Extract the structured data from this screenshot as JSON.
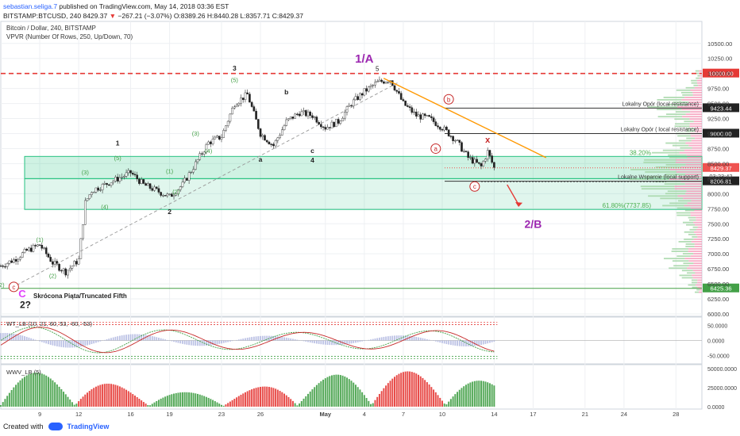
{
  "header": {
    "author": "sebastian.seliga.7",
    "published": "published on TradingView.com, May 14, 2018 03:36 EST",
    "symbol": "BITSTAMP:BTCUSD, 240",
    "last": "8429.37",
    "change": "−267.21 (−3.07%)",
    "open": "O:8389.26",
    "high": "H:8440.28",
    "low": "L:8357.71",
    "close": "C:8429.37"
  },
  "legend": {
    "title": "Bitcoin / Dollar, 240, BITSTAMP",
    "vpvr": "VPVR (Number Of Rows, 250, Up/Down, 70)",
    "wt": "WT_LB (10, 21, 60, 53, -60, -53)",
    "wvv": "WWV_LB (5)"
  },
  "footer": {
    "created": "Created with",
    "brand": "TradingView"
  },
  "colors": {
    "up": "#26a69a",
    "down": "#ef5350",
    "zone": "#26c281",
    "red_line": "#e53935",
    "trend": "#ff9800",
    "wave_purple": "#9c27b0",
    "vpvr_up": "#a5d6a7",
    "vpvr_down": "#f48fb1"
  },
  "chart_data": [
    {
      "type": "candlestick",
      "title": "Bitcoin / Dollar, 240, BITSTAMP",
      "y_axis": {
        "ylim": [
          6000,
          10800
        ],
        "ticks": [
          6000,
          6250,
          6500,
          6750,
          7000,
          7250,
          7500,
          7750,
          8000,
          8250,
          8500,
          8750,
          9000,
          9250,
          9500,
          9750,
          10000,
          10250,
          10500
        ],
        "tick_labels": [
          "6000.00",
          "6250.00",
          "6500.00",
          "6750.00",
          "7000.00",
          "7250.00",
          "7500.00",
          "7750.00",
          "8000.00",
          "8250.00",
          "8500.00",
          "8750.00",
          "9000.00",
          "9250.00",
          "9500.00",
          "9750.00",
          "10000.00",
          "10250.00",
          "10500.00"
        ]
      },
      "x_axis": {
        "date_range": [
          "2018-04-06",
          "2018-05-30"
        ],
        "tick_dates": [
          "2018-04-09",
          "2018-04-12",
          "2018-04-16",
          "2018-04-19",
          "2018-04-23",
          "2018-04-26",
          "2018-05-01",
          "2018-05-04",
          "2018-05-07",
          "2018-05-10",
          "2018-05-14",
          "2018-05-17",
          "2018-05-21",
          "2018-05-24",
          "2018-05-28"
        ],
        "tick_labels": [
          "9",
          "12",
          "16",
          "19",
          "23",
          "26",
          "May",
          "4",
          "7",
          "10",
          "14",
          "17",
          "21",
          "24",
          "28"
        ]
      },
      "price_path": [
        [
          "2018-04-06",
          6800
        ],
        [
          "2018-04-07",
          6900
        ],
        [
          "2018-04-08",
          7050
        ],
        [
          "2018-04-09",
          7150
        ],
        [
          "2018-04-10",
          6850
        ],
        [
          "2018-04-11",
          6700
        ],
        [
          "2018-04-12",
          6900
        ],
        [
          "2018-04-12T12",
          7850
        ],
        [
          "2018-04-13",
          8050
        ],
        [
          "2018-04-14",
          8150
        ],
        [
          "2018-04-15",
          8250
        ],
        [
          "2018-04-16",
          8350
        ],
        [
          "2018-04-17",
          8150
        ],
        [
          "2018-04-18",
          8050
        ],
        [
          "2018-04-19",
          7950
        ],
        [
          "2018-04-20",
          8150
        ],
        [
          "2018-04-21",
          8500
        ],
        [
          "2018-04-22",
          8850
        ],
        [
          "2018-04-23",
          8950
        ],
        [
          "2018-04-24",
          9500
        ],
        [
          "2018-04-25",
          9650
        ],
        [
          "2018-04-26",
          9000
        ],
        [
          "2018-04-27",
          8800
        ],
        [
          "2018-04-28",
          9200
        ],
        [
          "2018-04-29",
          9350
        ],
        [
          "2018-04-30",
          9300
        ],
        [
          "2018-05-01",
          9100
        ],
        [
          "2018-05-02",
          9200
        ],
        [
          "2018-05-03",
          9500
        ],
        [
          "2018-05-04",
          9700
        ],
        [
          "2018-05-05",
          9850
        ],
        [
          "2018-05-06",
          9900
        ],
        [
          "2018-05-07",
          9500
        ],
        [
          "2018-05-08",
          9300
        ],
        [
          "2018-05-09",
          9250
        ],
        [
          "2018-05-10",
          9100
        ],
        [
          "2018-05-11",
          8900
        ],
        [
          "2018-05-12",
          8600
        ],
        [
          "2018-05-13",
          8450
        ],
        [
          "2018-05-13T12",
          8700
        ],
        [
          "2018-05-14",
          8429.37
        ]
      ],
      "horizontal_levels": [
        {
          "price": 10000,
          "label": "10000.00",
          "style": "dashed-red"
        },
        {
          "price": 9423.44,
          "label": "9423.44",
          "note": "Lokalny Opór (local resistance)"
        },
        {
          "price": 9000,
          "label": "9000.00",
          "note": "Lokalny Opór ( local resistance)"
        },
        {
          "price": 8206.81,
          "label": "8206.81",
          "note": "Lokalne Wsparcie (local support)"
        },
        {
          "price": 8429.37,
          "label": "8429.37",
          "style": "last-price"
        },
        {
          "price": 6425.36,
          "label": "6425.36",
          "style": "green-line"
        }
      ],
      "fib_zones": [
        {
          "from": 8250,
          "to": 8620,
          "label": "38.20%"
        },
        {
          "from": 7737.85,
          "to": 8250,
          "label": "61.80%(7737.85)"
        }
      ],
      "countdown": "03:23:42",
      "annotations": {
        "wave_main": "1/A",
        "wave_target": "2/B",
        "wave_five": "5",
        "wave_x": "x",
        "truncated": "Skrócona Piąta/Truncated Fifth",
        "big_c": "C",
        "two_q": "2?",
        "labels": [
          "1",
          "2",
          "3",
          "4",
          "a",
          "b",
          "c",
          "(1)",
          "(2)",
          "(3)",
          "(4)",
          "(5)"
        ]
      }
    },
    {
      "type": "line",
      "title": "WT_LB (10, 21, 60, 53, -60, -53)",
      "ylim": [
        -70,
        70
      ],
      "tick_labels": [
        "50.0000",
        "0.0000",
        "-50.0000"
      ],
      "levels": [
        60,
        53,
        -53,
        -60
      ]
    },
    {
      "type": "bar",
      "title": "WWV_LB (5)",
      "ylim": [
        0,
        52000
      ],
      "tick_labels": [
        "50000.0000",
        "25000.0000",
        "0.0000"
      ]
    }
  ]
}
